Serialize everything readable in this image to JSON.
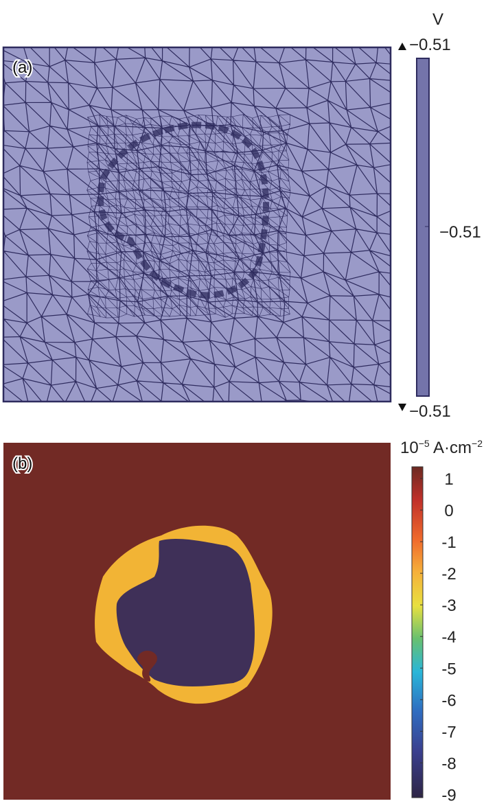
{
  "panel_a": {
    "label": "(a)",
    "unit": "V",
    "colorbar_top": "−0.51",
    "colorbar_mid": "−0.51",
    "colorbar_bottom": "−0.51"
  },
  "panel_b": {
    "label": "(b)",
    "unit_base": "10",
    "unit_exp": "−5",
    "unit_text": " A·cm",
    "unit_exp2": "−2",
    "clim": [
      -9.1,
      1.37
    ],
    "ticks": [
      1,
      0,
      -1,
      -2,
      -3,
      -4,
      -5,
      -6,
      -7,
      -8,
      -9
    ]
  }
}
